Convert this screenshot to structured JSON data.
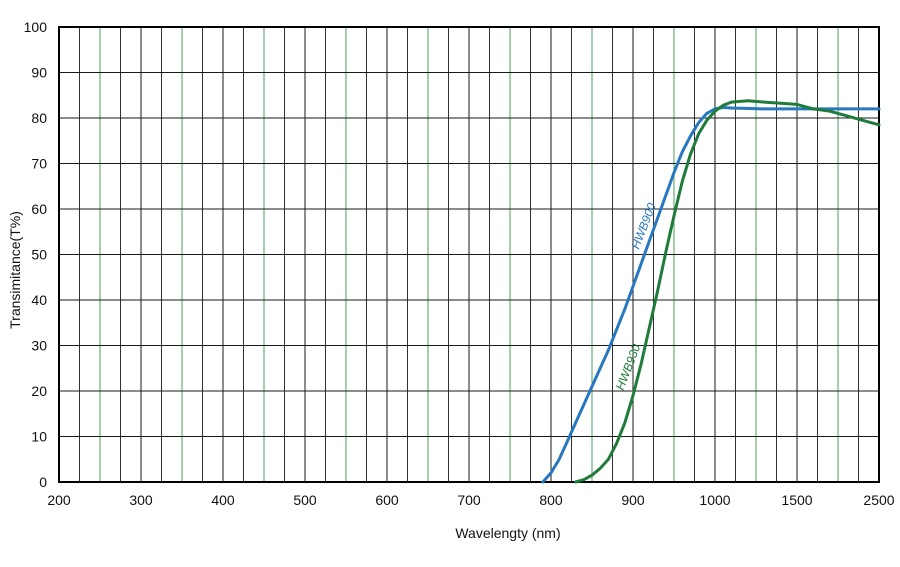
{
  "chart_data": {
    "type": "line",
    "xlabel": "Wavelengty (nm)",
    "ylabel": "Transimitance(T%)",
    "x_ticks": [
      "200",
      "300",
      "400",
      "500",
      "600",
      "700",
      "800",
      "900",
      "1000",
      "1500",
      "2500"
    ],
    "y_ticks": [
      "0",
      "10",
      "20",
      "30",
      "40",
      "50",
      "60",
      "70",
      "80",
      "90",
      "100"
    ],
    "ylim": [
      0,
      100
    ],
    "grid": true,
    "series": [
      {
        "name": "HWB900",
        "color": "#2878c0",
        "points": [
          [
            790,
            0
          ],
          [
            800,
            2
          ],
          [
            810,
            5
          ],
          [
            820,
            9
          ],
          [
            830,
            13
          ],
          [
            840,
            17
          ],
          [
            850,
            21
          ],
          [
            860,
            25
          ],
          [
            870,
            29
          ],
          [
            880,
            33.5
          ],
          [
            890,
            38
          ],
          [
            900,
            43
          ],
          [
            910,
            48
          ],
          [
            920,
            53
          ],
          [
            930,
            58
          ],
          [
            940,
            63
          ],
          [
            950,
            68
          ],
          [
            960,
            72.5
          ],
          [
            970,
            76
          ],
          [
            980,
            79
          ],
          [
            990,
            81
          ],
          [
            1000,
            82
          ],
          [
            1050,
            82.3
          ],
          [
            1100,
            82.2
          ],
          [
            1300,
            82
          ],
          [
            1500,
            82
          ],
          [
            1700,
            82
          ],
          [
            1900,
            82
          ],
          [
            2200,
            82
          ],
          [
            2500,
            82
          ]
        ]
      },
      {
        "name": "HWB930",
        "color": "#1e7b3a",
        "points": [
          [
            830,
            0
          ],
          [
            840,
            0.5
          ],
          [
            850,
            1.5
          ],
          [
            860,
            3
          ],
          [
            870,
            5
          ],
          [
            880,
            8.5
          ],
          [
            890,
            13
          ],
          [
            900,
            19
          ],
          [
            910,
            26
          ],
          [
            920,
            34
          ],
          [
            930,
            42
          ],
          [
            940,
            50.5
          ],
          [
            950,
            58.5
          ],
          [
            960,
            66
          ],
          [
            970,
            72
          ],
          [
            980,
            76.5
          ],
          [
            990,
            79.5
          ],
          [
            1000,
            81.5
          ],
          [
            1050,
            82.8
          ],
          [
            1100,
            83.5
          ],
          [
            1200,
            83.8
          ],
          [
            1300,
            83.5
          ],
          [
            1500,
            83
          ],
          [
            1700,
            82
          ],
          [
            1900,
            81.5
          ],
          [
            2100,
            80.5
          ],
          [
            2300,
            79.5
          ],
          [
            2500,
            78.5
          ]
        ]
      }
    ]
  }
}
